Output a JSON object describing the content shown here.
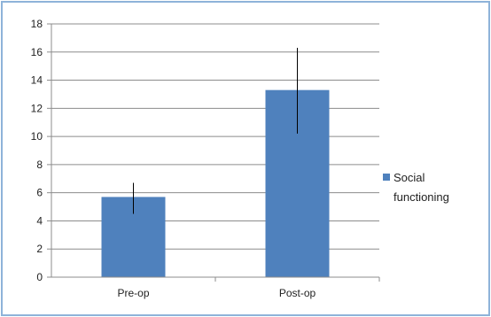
{
  "chart_data": {
    "type": "bar",
    "categories": [
      "Pre-op",
      "Post-op"
    ],
    "series": [
      {
        "name": "Social functioning",
        "values": [
          5.7,
          13.3
        ],
        "error_low": [
          4.5,
          10.2
        ],
        "error_high": [
          6.7,
          16.3
        ],
        "color": "#4f81bd"
      }
    ],
    "ylim": [
      0,
      18
    ],
    "yticks": [
      0,
      2,
      4,
      6,
      8,
      10,
      12,
      14,
      16,
      18
    ],
    "grid": true,
    "legend": "right",
    "legend_lines": [
      "Social",
      "functioning"
    ],
    "title": "",
    "xlabel": "",
    "ylabel": ""
  },
  "colors": {
    "bar": "#4f81bd",
    "grid": "#8c8c8c",
    "frame": "#8eb3d9"
  }
}
